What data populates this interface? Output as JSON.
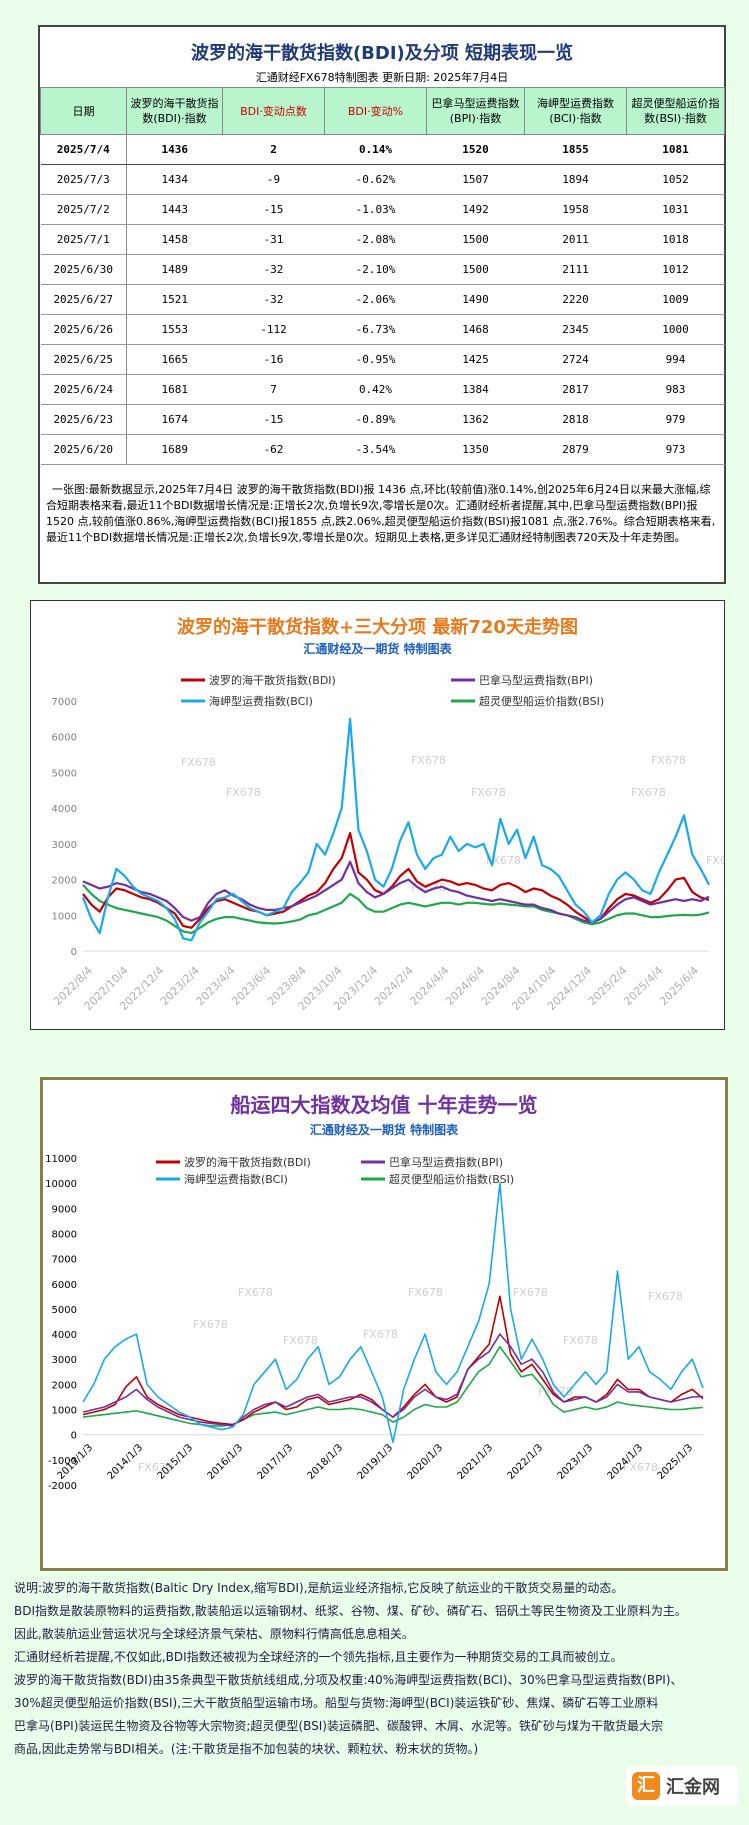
{
  "table_section": {
    "title": "波罗的海干散货指数(BDI)及分项  短期表现一览",
    "subtitle": "汇通财经FX678特制图表      更新日期: 2025年7月4日",
    "headers": [
      "日期",
      "波罗的海干散货指数(BDI)·指数",
      "BDI·变动点数",
      "BDI·变动%",
      "巴拿马型运费指数(BPI)·指数",
      "海岬型运费指数(BCI)·指数",
      "超灵便型船运价指数(BSI)·指数"
    ],
    "rows": [
      [
        "2025/7/4",
        "1436",
        "2",
        "0.14%",
        "1520",
        "1855",
        "1081"
      ],
      [
        "2025/7/3",
        "1434",
        "-9",
        "-0.62%",
        "1507",
        "1894",
        "1052"
      ],
      [
        "2025/7/2",
        "1443",
        "-15",
        "-1.03%",
        "1492",
        "1958",
        "1031"
      ],
      [
        "2025/7/1",
        "1458",
        "-31",
        "-2.08%",
        "1500",
        "2011",
        "1018"
      ],
      [
        "2025/6/30",
        "1489",
        "-32",
        "-2.10%",
        "1500",
        "2111",
        "1012"
      ],
      [
        "2025/6/27",
        "1521",
        "-32",
        "-2.06%",
        "1490",
        "2220",
        "1009"
      ],
      [
        "2025/6/26",
        "1553",
        "-112",
        "-6.73%",
        "1468",
        "2345",
        "1000"
      ],
      [
        "2025/6/25",
        "1665",
        "-16",
        "-0.95%",
        "1425",
        "2724",
        "994"
      ],
      [
        "2025/6/24",
        "1681",
        "7",
        "0.42%",
        "1384",
        "2817",
        "983"
      ],
      [
        "2025/6/23",
        "1674",
        "-15",
        "-0.89%",
        "1362",
        "2818",
        "979"
      ],
      [
        "2025/6/20",
        "1689",
        "-62",
        "-3.54%",
        "1350",
        "2879",
        "973"
      ]
    ],
    "note": "一张图:最新数据显示,2025年7月4日 波罗的海干散货指数(BDI)报 1436 点,环比(较前值)涨0.14%,创2025年6月24日以来最大涨幅,综合短期表格来看,最近11个BDI数据增长情况是:正增长2次,负增长9次,零增长是0次。汇通财经析者提醒,其中,巴拿马型运费指数(BPI)报1520 点,较前值涨0.86%,海岬型运费指数(BCI)报1855 点,跌2.06%,超灵便型船运价指数(BSI)报1081 点,涨2.76%。综合短期表格来看,最近11个BDI数据增长情况是:正增长2次,负增长9次,零增长是0次。短期见上表格,更多详见汇通财经特制图表720天及十年走势图。"
  },
  "colors": {
    "bdi": "#c00000",
    "bpi": "#7030a0",
    "bci": "#1aa8ee",
    "bsi": "#1ea84a",
    "title_orange": "#e87a1c",
    "subtitle_blue": "#1f5fbf",
    "title_purple": "#7030a0"
  },
  "watermark": "FX678",
  "chart_data": [
    {
      "type": "line",
      "title": "波罗的海干散货指数+三大分项  最新720天走势图",
      "subtitle": "汇通财经及一期货  特制图表",
      "ylim": [
        0,
        7000
      ],
      "yticks": [
        0,
        1000,
        2000,
        3000,
        4000,
        5000,
        6000,
        7000
      ],
      "x_tick_labels": [
        "2022/8/4",
        "2022/10/4",
        "2022/12/4",
        "2023/2/4",
        "2023/4/4",
        "2023/6/4",
        "2023/8/4",
        "2023/10/4",
        "2023/12/4",
        "2024/2/4",
        "2024/4/4",
        "2024/6/4",
        "2024/8/4",
        "2024/10/4",
        "2024/12/4",
        "2025/2/4",
        "2025/4/4",
        "2025/6/4"
      ],
      "legend_position": "top",
      "grid": false,
      "series": [
        {
          "name": "波罗的海干散货指数(BDI)",
          "color_key": "bdi",
          "values": [
            1600,
            1300,
            1100,
            1500,
            1750,
            1700,
            1600,
            1500,
            1450,
            1350,
            1200,
            1050,
            700,
            650,
            900,
            1200,
            1400,
            1450,
            1350,
            1250,
            1150,
            1100,
            1000,
            1050,
            1100,
            1250,
            1400,
            1550,
            1650,
            1900,
            2300,
            2600,
            3300,
            2200,
            2000,
            1700,
            1600,
            1800,
            2100,
            2300,
            1950,
            1800,
            1900,
            2000,
            1950,
            1850,
            1900,
            1850,
            1750,
            1700,
            1850,
            1900,
            1800,
            1650,
            1750,
            1700,
            1550,
            1450,
            1300,
            1100,
            950,
            800,
            900,
            1200,
            1450,
            1600,
            1550,
            1450,
            1350,
            1450,
            1700,
            2000,
            2050,
            1650,
            1500,
            1430
          ]
        },
        {
          "name": "巴拿马型运费指数(BPI)",
          "color_key": "bpi",
          "values": [
            1950,
            1850,
            1750,
            1800,
            1900,
            1850,
            1750,
            1650,
            1600,
            1500,
            1400,
            1200,
            950,
            850,
            950,
            1350,
            1600,
            1700,
            1550,
            1450,
            1300,
            1200,
            1150,
            1150,
            1200,
            1250,
            1350,
            1450,
            1550,
            1700,
            1850,
            2000,
            2500,
            1900,
            1650,
            1500,
            1600,
            1750,
            1900,
            2000,
            1800,
            1650,
            1750,
            1800,
            1700,
            1650,
            1550,
            1500,
            1450,
            1400,
            1450,
            1400,
            1350,
            1300,
            1300,
            1200,
            1150,
            1050,
            1000,
            950,
            850,
            800,
            900,
            1100,
            1300,
            1450,
            1500,
            1400,
            1300,
            1350,
            1400,
            1450,
            1400,
            1450,
            1400,
            1520
          ]
        },
        {
          "name": "海岬型运费指数(BCI)",
          "color_key": "bci",
          "values": [
            1500,
            900,
            500,
            1500,
            2300,
            2100,
            1800,
            1600,
            1500,
            1400,
            1200,
            900,
            350,
            300,
            800,
            1100,
            1450,
            1500,
            1600,
            1400,
            1200,
            1100,
            1000,
            1100,
            1200,
            1650,
            1900,
            2200,
            3000,
            2700,
            3300,
            4000,
            6500,
            3400,
            2800,
            2000,
            1800,
            2300,
            3100,
            3600,
            2700,
            2300,
            2600,
            2700,
            3200,
            2800,
            3000,
            2900,
            3000,
            2400,
            3700,
            3000,
            3400,
            2600,
            3200,
            2400,
            2300,
            2100,
            1700,
            1300,
            1100,
            800,
            1000,
            1600,
            2000,
            2200,
            2000,
            1700,
            1600,
            2200,
            2700,
            3200,
            3800,
            2700,
            2300,
            1855
          ]
        },
        {
          "name": "超灵便型船运价指数(BSI)",
          "color_key": "bsi",
          "values": [
            1850,
            1600,
            1400,
            1300,
            1200,
            1150,
            1100,
            1050,
            1000,
            950,
            850,
            700,
            550,
            500,
            650,
            800,
            900,
            950,
            950,
            900,
            850,
            800,
            780,
            770,
            790,
            830,
            880,
            1000,
            1050,
            1150,
            1250,
            1350,
            1600,
            1450,
            1200,
            1100,
            1100,
            1200,
            1300,
            1350,
            1300,
            1250,
            1300,
            1350,
            1350,
            1300,
            1350,
            1350,
            1320,
            1300,
            1330,
            1300,
            1280,
            1250,
            1250,
            1150,
            1100,
            1050,
            1000,
            900,
            800,
            750,
            800,
            900,
            1000,
            1050,
            1050,
            1000,
            950,
            950,
            980,
            1000,
            1010,
            1000,
            1020,
            1081
          ]
        }
      ]
    },
    {
      "type": "line",
      "title": "船运四大指数及均值 十年走势一览",
      "subtitle": "汇通财经及一期货 特制图表",
      "ylim": [
        -2000,
        11000
      ],
      "yticks": [
        -2000,
        -1000,
        0,
        1000,
        2000,
        3000,
        4000,
        5000,
        6000,
        7000,
        8000,
        9000,
        10000,
        11000
      ],
      "x_tick_labels": [
        "2013/1/3",
        "2014/1/3",
        "2015/1/3",
        "2016/1/3",
        "2017/1/3",
        "2018/1/3",
        "2019/1/3",
        "2020/1/3",
        "2021/1/3",
        "2022/1/3",
        "2023/1/3",
        "2024/1/3",
        "2025/1/3"
      ],
      "legend_position": "top",
      "grid": false,
      "series": [
        {
          "name": "波罗的海干散货指数(BDI)",
          "color_key": "bdi",
          "values": [
            800,
            900,
            1000,
            1200,
            1900,
            2300,
            1500,
            1200,
            1000,
            800,
            700,
            600,
            500,
            450,
            400,
            600,
            900,
            1100,
            1300,
            1000,
            1100,
            1400,
            1500,
            1200,
            1300,
            1400,
            1600,
            1400,
            1000,
            700,
            1100,
            1600,
            2000,
            1500,
            1300,
            1500,
            2600,
            3100,
            3600,
            5500,
            3200,
            2500,
            2800,
            2200,
            1600,
            1300,
            1500,
            1500,
            1300,
            1600,
            2200,
            1800,
            1800,
            1500,
            1400,
            1300,
            1600,
            1800,
            1436
          ]
        },
        {
          "name": "巴拿马型运费指数(BPI)",
          "color_key": "bpi",
          "values": [
            900,
            1000,
            1100,
            1300,
            1500,
            1800,
            1400,
            1100,
            900,
            700,
            600,
            500,
            450,
            400,
            350,
            700,
            1000,
            1200,
            1300,
            1100,
            1300,
            1500,
            1600,
            1300,
            1400,
            1500,
            1500,
            1300,
            1000,
            700,
            1000,
            1500,
            1800,
            1500,
            1400,
            1600,
            2600,
            3000,
            3300,
            4000,
            3500,
            2800,
            3000,
            2500,
            1700,
            1300,
            1400,
            1500,
            1300,
            1500,
            2000,
            1700,
            1700,
            1500,
            1400,
            1300,
            1400,
            1500,
            1520
          ]
        },
        {
          "name": "海岬型运费指数(BCI)",
          "color_key": "bci",
          "values": [
            1300,
            2000,
            3000,
            3500,
            3800,
            4000,
            2000,
            1500,
            1200,
            900,
            700,
            400,
            300,
            200,
            300,
            800,
            2000,
            2500,
            3000,
            1800,
            2200,
            3000,
            3500,
            2000,
            2300,
            3000,
            3500,
            2500,
            1500,
            -300,
            1800,
            3000,
            4000,
            2500,
            2000,
            2500,
            3500,
            4500,
            6000,
            10000,
            5000,
            3000,
            3800,
            3000,
            2000,
            1500,
            2000,
            2500,
            2000,
            2500,
            6500,
            3000,
            3500,
            2500,
            2200,
            1800,
            2500,
            3000,
            1855
          ]
        },
        {
          "name": "超灵便型船运价指数(BSI)",
          "color_key": "bsi",
          "values": [
            700,
            750,
            800,
            850,
            900,
            950,
            850,
            750,
            650,
            550,
            450,
            400,
            350,
            350,
            400,
            600,
            800,
            850,
            900,
            800,
            900,
            1000,
            1100,
            1000,
            1000,
            1050,
            1000,
            900,
            800,
            500,
            700,
            1000,
            1200,
            1100,
            1100,
            1300,
            1900,
            2500,
            2800,
            3500,
            2900,
            2300,
            2400,
            1900,
            1200,
            900,
            1000,
            1100,
            1000,
            1100,
            1300,
            1200,
            1150,
            1100,
            1050,
            1000,
            1000,
            1050,
            1081
          ]
        }
      ]
    }
  ],
  "footer": [
    "说明:波罗的海干散货指数(Baltic Dry Index,缩写BDI),是航运业经济指标,它反映了航运业的干散货交易量的动态。",
    "BDI指数是散装原物料的运费指数,散装船运以运输钢材、纸浆、谷物、煤、矿砂、磷矿石、铝矾土等民生物资及工业原料为主。",
    "因此,散装航运业营运状况与全球经济景气荣枯、原物料行情高低息息相关。",
    "汇通财经析若提醒,不仅如此,BDI指数还被视为全球经济的一个领先指标,且主要作为一种期货交易的工具而被创立。",
    "波罗的海干散货指数(BDI)由35条典型干散货航线组成,分项及权重:40%海岬型运费指数(BCI)、30%巴拿马型运费指数(BPI)、",
    "30%超灵便型船运价指数(BSI),三大干散货船型运输市场。船型与货物:海岬型(BCI)装运铁矿砂、焦煤、磷矿石等工业原料",
    "巴拿马(BPI)装运民生物资及谷物等大宗物资;超灵便型(BSI)装运磷肥、碳酸钾、木屑、水泥等。铁矿砂与煤为干散货最大宗",
    "商品,因此走势常与BDI相关。(注:干散货是指不加包装的块状、颗粒状、粉末状的货物。)"
  ],
  "logo": {
    "mark": "汇",
    "text": "汇金网"
  }
}
